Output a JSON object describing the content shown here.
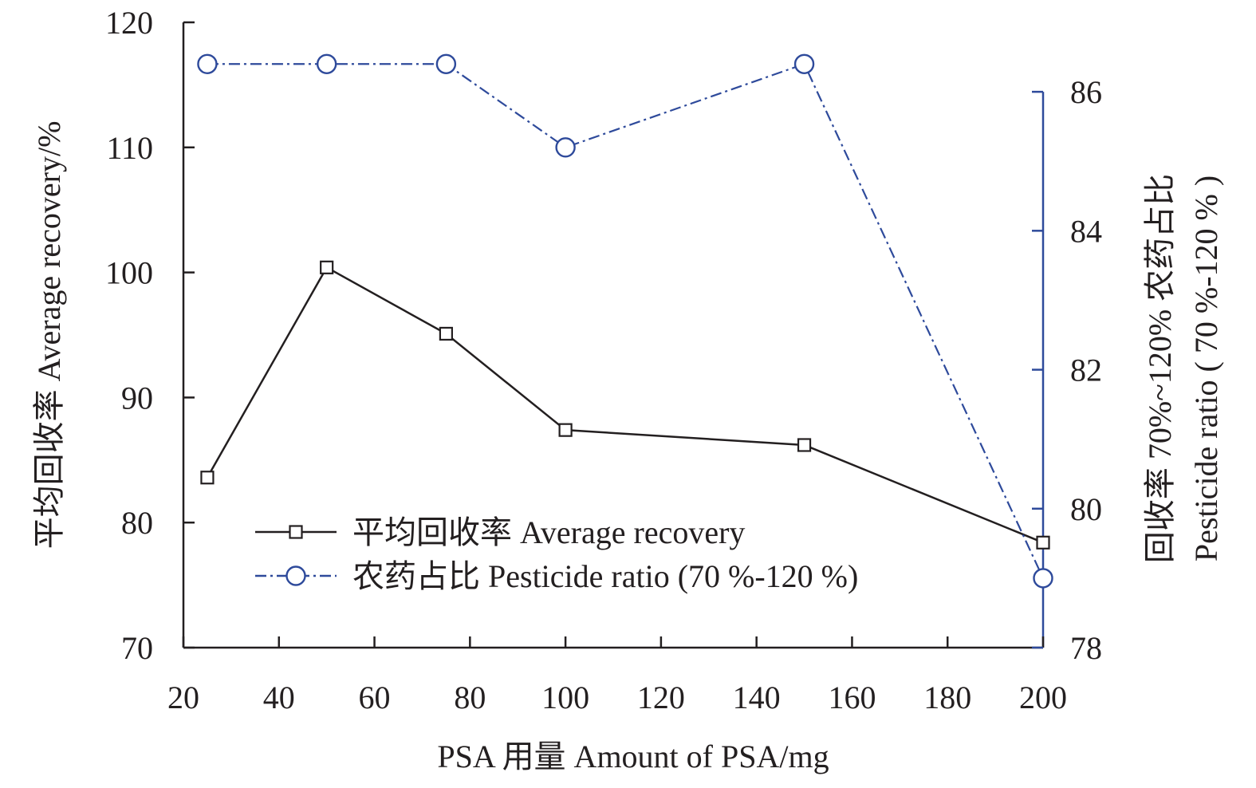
{
  "chart_data": {
    "type": "line",
    "title": "",
    "xlabel": "PSA 用量 Amount of PSA/mg",
    "ylabel": "平均回收率 Average recovery/%",
    "y2label_line1": "回收率 70%~120% 农药占比",
    "y2label_line2": "Pesticide ratio ( 70 %-120 % )",
    "xlim": [
      20,
      200
    ],
    "ylim": [
      70,
      120
    ],
    "y2lim": [
      78,
      87
    ],
    "xticks": [
      "20",
      "40",
      "60",
      "80",
      "100",
      "120",
      "140",
      "160",
      "180",
      "200"
    ],
    "yticks": [
      "70",
      "80",
      "90",
      "100",
      "110",
      "120"
    ],
    "y2ticks": [
      "78",
      "80",
      "82",
      "84",
      "86"
    ],
    "xtick_values": [
      20,
      40,
      60,
      80,
      100,
      120,
      140,
      160,
      180,
      200
    ],
    "ytick_values": [
      70,
      80,
      90,
      100,
      110,
      120
    ],
    "y2tick_values": [
      78,
      80,
      82,
      84,
      86
    ],
    "legend_position": "lower-center",
    "grid": false,
    "series": [
      {
        "name": "平均回收率 Average recovery",
        "axis": "left",
        "color": "#231f20",
        "marker": "square",
        "line_style": "solid",
        "x": [
          25,
          50,
          75,
          100,
          150,
          200
        ],
        "values": [
          83.6,
          100.4,
          95.1,
          87.4,
          86.2,
          78.4
        ]
      },
      {
        "name": "农药占比 Pesticide ratio (70 %-120 %)",
        "axis": "right",
        "color": "#2e4a9b",
        "marker": "circle",
        "line_style": "dashdot",
        "x": [
          25,
          50,
          75,
          100,
          150,
          200
        ],
        "values": [
          86.4,
          86.4,
          86.4,
          85.2,
          86.4,
          79.0
        ]
      }
    ]
  }
}
